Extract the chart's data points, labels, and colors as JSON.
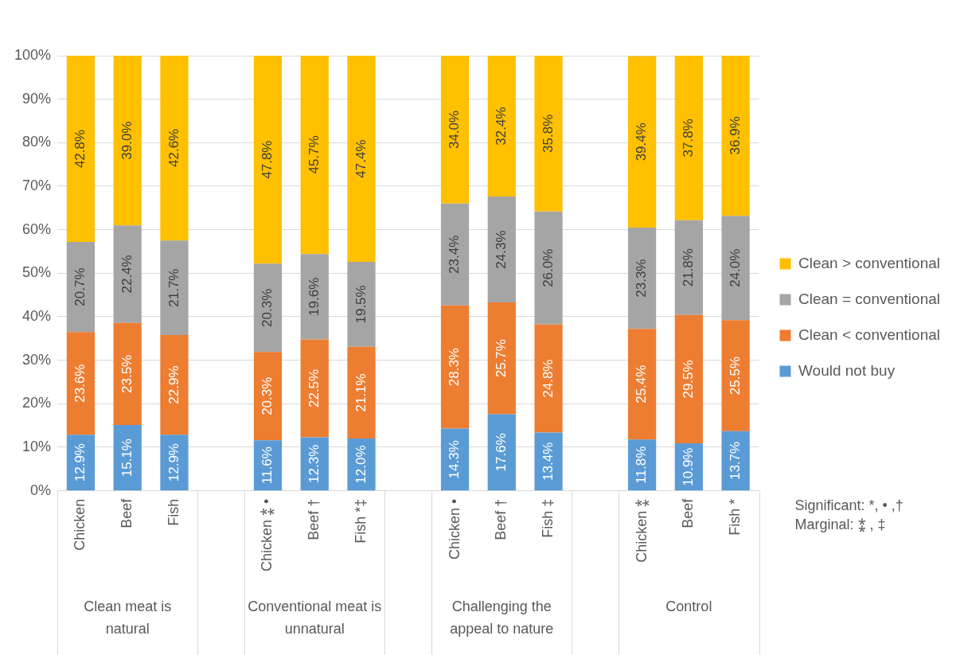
{
  "chart_data": {
    "type": "bar",
    "stacked": true,
    "legend": "right",
    "grid": "y",
    "categories": [
      "Chicken",
      "Beef",
      "Fish",
      null,
      "Chicken ⁑ •",
      "Beef †",
      "Fish *‡",
      null,
      "Chicken •",
      "Beef †",
      "Fish ‡",
      null,
      "Chicken ⁑",
      "Beef",
      "Fish *"
    ],
    "ylim": [
      0,
      100
    ],
    "yticks": [
      {
        "value": 0,
        "label": "0%"
      },
      {
        "value": 10,
        "label": "10%"
      },
      {
        "value": 20,
        "label": "20%"
      },
      {
        "value": 30,
        "label": "30%"
      },
      {
        "value": 40,
        "label": "40%"
      },
      {
        "value": 50,
        "label": "50%"
      },
      {
        "value": 60,
        "label": "60%"
      },
      {
        "value": 70,
        "label": "70%"
      },
      {
        "value": 80,
        "label": "80%"
      },
      {
        "value": 90,
        "label": "90%"
      },
      {
        "value": 100,
        "label": "100%"
      }
    ],
    "series": [
      {
        "name": "Would not buy",
        "color": "#5b9bd5",
        "values": [
          12.9,
          15.1,
          12.9,
          null,
          11.6,
          12.3,
          12.0,
          null,
          14.3,
          17.6,
          13.4,
          null,
          11.8,
          10.9,
          13.7
        ],
        "value_labels": [
          "12.9%",
          "15.1%",
          "12.9%",
          null,
          "11.6%",
          "12.3%",
          "12.0%",
          null,
          "14.3%",
          "17.6%",
          "13.4%",
          null,
          "11.8%",
          "10.9%",
          "13.7%"
        ]
      },
      {
        "name": "Clean < conventional",
        "color": "#ed7d31",
        "values": [
          23.6,
          23.5,
          22.9,
          null,
          20.3,
          22.5,
          21.1,
          null,
          28.3,
          25.7,
          24.8,
          null,
          25.4,
          29.5,
          25.5
        ],
        "value_labels": [
          "23.6%",
          "23.5%",
          "22.9%",
          null,
          "20.3%",
          "22.5%",
          "21.1%",
          null,
          "28.3%",
          "25.7%",
          "24.8%",
          null,
          "25.4%",
          "29.5%",
          "25.5%"
        ]
      },
      {
        "name": "Clean = conventional",
        "color": "#a5a5a5",
        "values": [
          20.7,
          22.4,
          21.7,
          null,
          20.3,
          19.6,
          19.5,
          null,
          23.4,
          24.3,
          26.0,
          null,
          23.3,
          21.8,
          24.0
        ],
        "value_labels": [
          "20.7%",
          "22.4%",
          "21.7%",
          null,
          "20.3%",
          "19.6%",
          "19.5%",
          null,
          "23.4%",
          "24.3%",
          "26.0%",
          null,
          "23.3%",
          "21.8%",
          "24.0%"
        ]
      },
      {
        "name": "Clean > conventional",
        "color": "#ffc000",
        "values": [
          42.8,
          39.0,
          42.6,
          null,
          47.8,
          45.7,
          47.4,
          null,
          34.0,
          32.4,
          35.8,
          null,
          39.4,
          37.8,
          36.9
        ],
        "value_labels": [
          "42.8%",
          "39.0%",
          "42.6%",
          null,
          "47.8%",
          "45.7%",
          "47.4%",
          null,
          "34.0%",
          "32.4%",
          "35.8%",
          null,
          "39.4%",
          "37.8%",
          "36.9%"
        ]
      }
    ],
    "annotations": [
      "Clean meat is natural",
      "Conventional meat is unnatural",
      "Challenging the appeal to nature",
      "Control",
      "Significant: *, • ,†",
      "Marginal: ⁑ , ‡"
    ]
  }
}
